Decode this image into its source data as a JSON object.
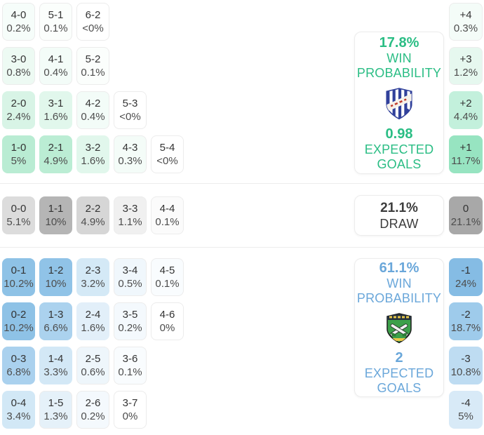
{
  "home_section": {
    "rows": [
      [
        {
          "score": "4-0",
          "pct": "0.2%",
          "bg": "#f6fdfa"
        },
        {
          "score": "5-1",
          "pct": "0.1%",
          "bg": "#fbfefc"
        },
        {
          "score": "6-2",
          "pct": "<0%",
          "bg": "#ffffff"
        }
      ],
      [
        {
          "score": "3-0",
          "pct": "0.8%",
          "bg": "#edfaf3"
        },
        {
          "score": "4-1",
          "pct": "0.4%",
          "bg": "#f3fcf8"
        },
        {
          "score": "5-2",
          "pct": "0.1%",
          "bg": "#fbfefc"
        }
      ],
      [
        {
          "score": "2-0",
          "pct": "2.4%",
          "bg": "#d8f4e6"
        },
        {
          "score": "3-1",
          "pct": "1.6%",
          "bg": "#e1f7ec"
        },
        {
          "score": "4-2",
          "pct": "0.4%",
          "bg": "#f3fcf8"
        },
        {
          "score": "5-3",
          "pct": "<0%",
          "bg": "#ffffff"
        }
      ],
      [
        {
          "score": "1-0",
          "pct": "5%",
          "bg": "#b9ecd3"
        },
        {
          "score": "2-1",
          "pct": "4.9%",
          "bg": "#bbedd4"
        },
        {
          "score": "3-2",
          "pct": "1.6%",
          "bg": "#e1f7ec"
        },
        {
          "score": "4-3",
          "pct": "0.3%",
          "bg": "#f4fcf8"
        },
        {
          "score": "5-4",
          "pct": "<0%",
          "bg": "#ffffff"
        }
      ]
    ],
    "diff_cells": [
      {
        "label": "+4",
        "pct": "0.3%",
        "bg": "#f4fcf8"
      },
      {
        "label": "+3",
        "pct": "1.2%",
        "bg": "#e6f8ef"
      },
      {
        "label": "+2",
        "pct": "4.4%",
        "bg": "#c3f0dc"
      },
      {
        "label": "+1",
        "pct": "11.7%",
        "bg": "#97e4c1"
      }
    ],
    "panel": {
      "win_pct": "17.8%",
      "win_line1": "WIN",
      "win_line2": "PROBABILITY",
      "xg": "0.98",
      "xg_line1": "EXPECTED",
      "xg_line2": "GOALS",
      "accent": "#2abd84",
      "logo": "home-team-crest"
    }
  },
  "draw_section": {
    "row": [
      {
        "score": "0-0",
        "pct": "5.1%",
        "bg": "#dcdcdc"
      },
      {
        "score": "1-1",
        "pct": "10%",
        "bg": "#b5b5b5"
      },
      {
        "score": "2-2",
        "pct": "4.9%",
        "bg": "#d6d6d6"
      },
      {
        "score": "3-3",
        "pct": "1.1%",
        "bg": "#f0f0f0"
      },
      {
        "score": "4-4",
        "pct": "0.1%",
        "bg": "#fbfbfb"
      }
    ],
    "diff_cell": {
      "label": "0",
      "pct": "21.1%",
      "bg": "#a8a8a8"
    },
    "panel": {
      "pct": "21.1%",
      "label": "DRAW",
      "accent": "#3d3d3d"
    }
  },
  "away_section": {
    "rows": [
      [
        {
          "score": "0-1",
          "pct": "10.2%",
          "bg": "#8ec2e6"
        },
        {
          "score": "1-2",
          "pct": "10%",
          "bg": "#90c3e7"
        },
        {
          "score": "2-3",
          "pct": "3.2%",
          "bg": "#d4e9f6"
        },
        {
          "score": "3-4",
          "pct": "0.5%",
          "bg": "#f0f7fc"
        },
        {
          "score": "4-5",
          "pct": "0.1%",
          "bg": "#f9fcfe"
        }
      ],
      [
        {
          "score": "0-2",
          "pct": "10.2%",
          "bg": "#8ec2e6"
        },
        {
          "score": "1-3",
          "pct": "6.6%",
          "bg": "#abd2ee"
        },
        {
          "score": "2-4",
          "pct": "1.6%",
          "bg": "#e2eff9"
        },
        {
          "score": "3-5",
          "pct": "0.2%",
          "bg": "#f4f9fd"
        },
        {
          "score": "4-6",
          "pct": "0%",
          "bg": "#ffffff"
        }
      ],
      [
        {
          "score": "0-3",
          "pct": "6.8%",
          "bg": "#aad1ee"
        },
        {
          "score": "1-4",
          "pct": "3.3%",
          "bg": "#d3e8f6"
        },
        {
          "score": "2-5",
          "pct": "0.6%",
          "bg": "#eef6fb"
        },
        {
          "score": "3-6",
          "pct": "0.1%",
          "bg": "#f9fcfe"
        }
      ],
      [
        {
          "score": "0-4",
          "pct": "3.4%",
          "bg": "#d2e8f6"
        },
        {
          "score": "1-5",
          "pct": "1.3%",
          "bg": "#e5f1f9"
        },
        {
          "score": "2-6",
          "pct": "0.2%",
          "bg": "#f4f9fd"
        },
        {
          "score": "3-7",
          "pct": "0%",
          "bg": "#ffffff"
        }
      ]
    ],
    "diff_cells": [
      {
        "label": "-1",
        "pct": "24%",
        "bg": "#85bce4"
      },
      {
        "label": "-2",
        "pct": "18.7%",
        "bg": "#9ecbeb"
      },
      {
        "label": "-3",
        "pct": "10.8%",
        "bg": "#bedcf2"
      },
      {
        "label": "-4",
        "pct": "5%",
        "bg": "#d8eaf7"
      }
    ],
    "panel": {
      "win_pct": "61.1%",
      "win_line1": "WIN",
      "win_line2": "PROBABILITY",
      "xg": "2",
      "xg_line1": "EXPECTED",
      "xg_line2": "GOALS",
      "accent": "#6aa7da",
      "logo": "away-team-crest"
    }
  }
}
